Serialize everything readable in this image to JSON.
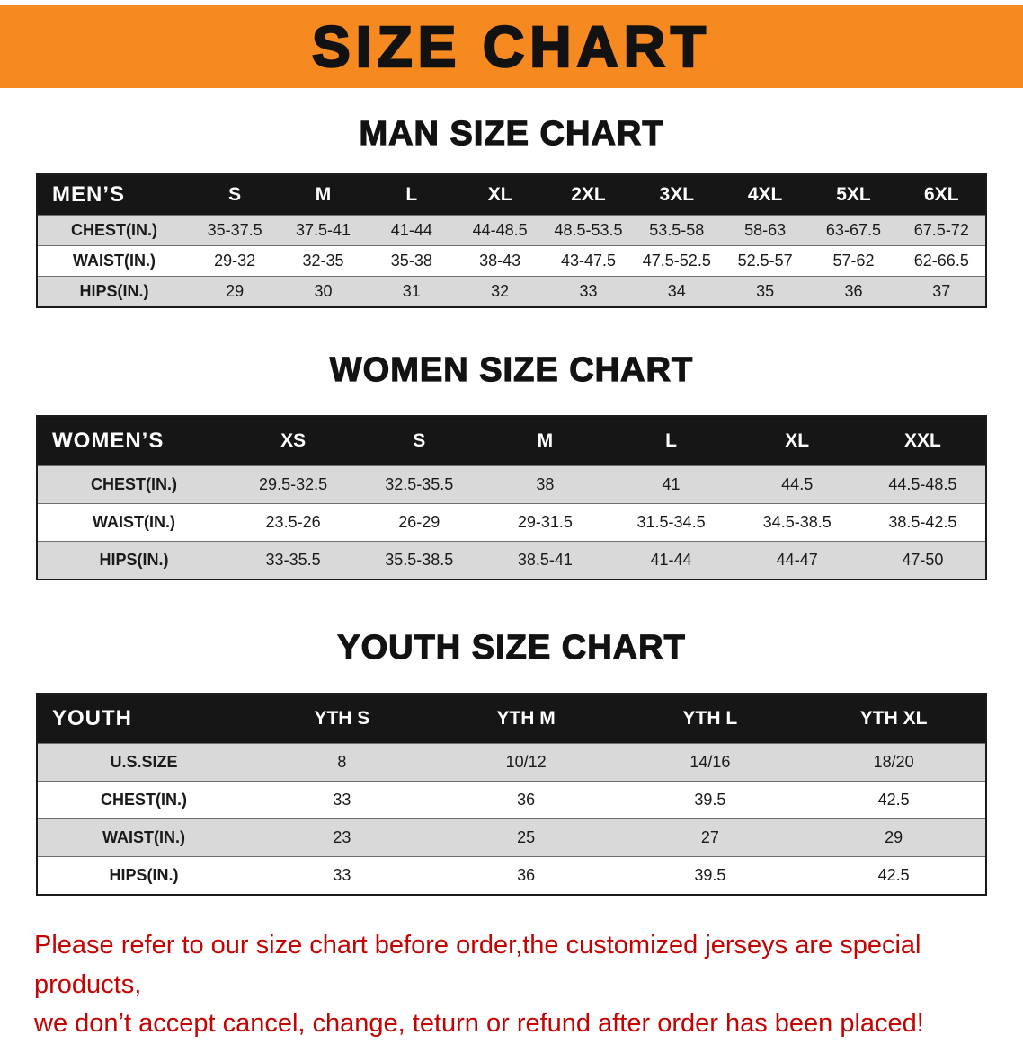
{
  "banner": {
    "title": "SIZE CHART"
  },
  "colors": {
    "banner_bg": "#f6891f",
    "header_bar": "#161616",
    "shaded_row": "#d9d9d9",
    "disclaimer_red": "#c40303"
  },
  "sections": [
    {
      "id": "men",
      "heading": "MAN SIZE CHART",
      "table": {
        "header": [
          "MEN’S",
          "S",
          "M",
          "L",
          "XL",
          "2XL",
          "3XL",
          "4XL",
          "5XL",
          "6XL"
        ],
        "rows": [
          [
            "CHEST(IN.)",
            "35-37.5",
            "37.5-41",
            "41-44",
            "44-48.5",
            "48.5-53.5",
            "53.5-58",
            "58-63",
            "63-67.5",
            "67.5-72"
          ],
          [
            "WAIST(IN.)",
            "29-32",
            "32-35",
            "35-38",
            "38-43",
            "43-47.5",
            "47.5-52.5",
            "52.5-57",
            "57-62",
            "62-66.5"
          ],
          [
            "HIPS(IN.)",
            "29",
            "30",
            "31",
            "32",
            "33",
            "34",
            "35",
            "36",
            "37"
          ]
        ]
      }
    },
    {
      "id": "women",
      "heading": "WOMEN SIZE CHART",
      "table": {
        "header": [
          "WOMEN’S",
          "XS",
          "S",
          "M",
          "L",
          "XL",
          "XXL"
        ],
        "rows": [
          [
            "CHEST(IN.)",
            "29.5-32.5",
            "32.5-35.5",
            "38",
            "41",
            "44.5",
            "44.5-48.5"
          ],
          [
            "WAIST(IN.)",
            "23.5-26",
            "26-29",
            "29-31.5",
            "31.5-34.5",
            "34.5-38.5",
            "38.5-42.5"
          ],
          [
            "HIPS(IN.)",
            "33-35.5",
            "35.5-38.5",
            "38.5-41",
            "41-44",
            "44-47",
            "47-50"
          ]
        ]
      }
    },
    {
      "id": "youth",
      "heading": "YOUTH SIZE CHART",
      "table": {
        "header": [
          "YOUTH",
          "YTH S",
          "YTH M",
          "YTH L",
          "YTH XL"
        ],
        "rows": [
          [
            "U.S.SIZE",
            "8",
            "10/12",
            "14/16",
            "18/20"
          ],
          [
            "CHEST(IN.)",
            "33",
            "36",
            "39.5",
            "42.5"
          ],
          [
            "WAIST(IN.)",
            "23",
            "25",
            "27",
            "29"
          ],
          [
            "HIPS(IN.)",
            "33",
            "36",
            "39.5",
            "42.5"
          ]
        ]
      }
    }
  ],
  "disclaimer": {
    "line1": "Please refer to our size chart before order,the customized jerseys are special products,",
    "line2": "we don’t accept cancel, change, teturn or refund after order has been placed!"
  }
}
